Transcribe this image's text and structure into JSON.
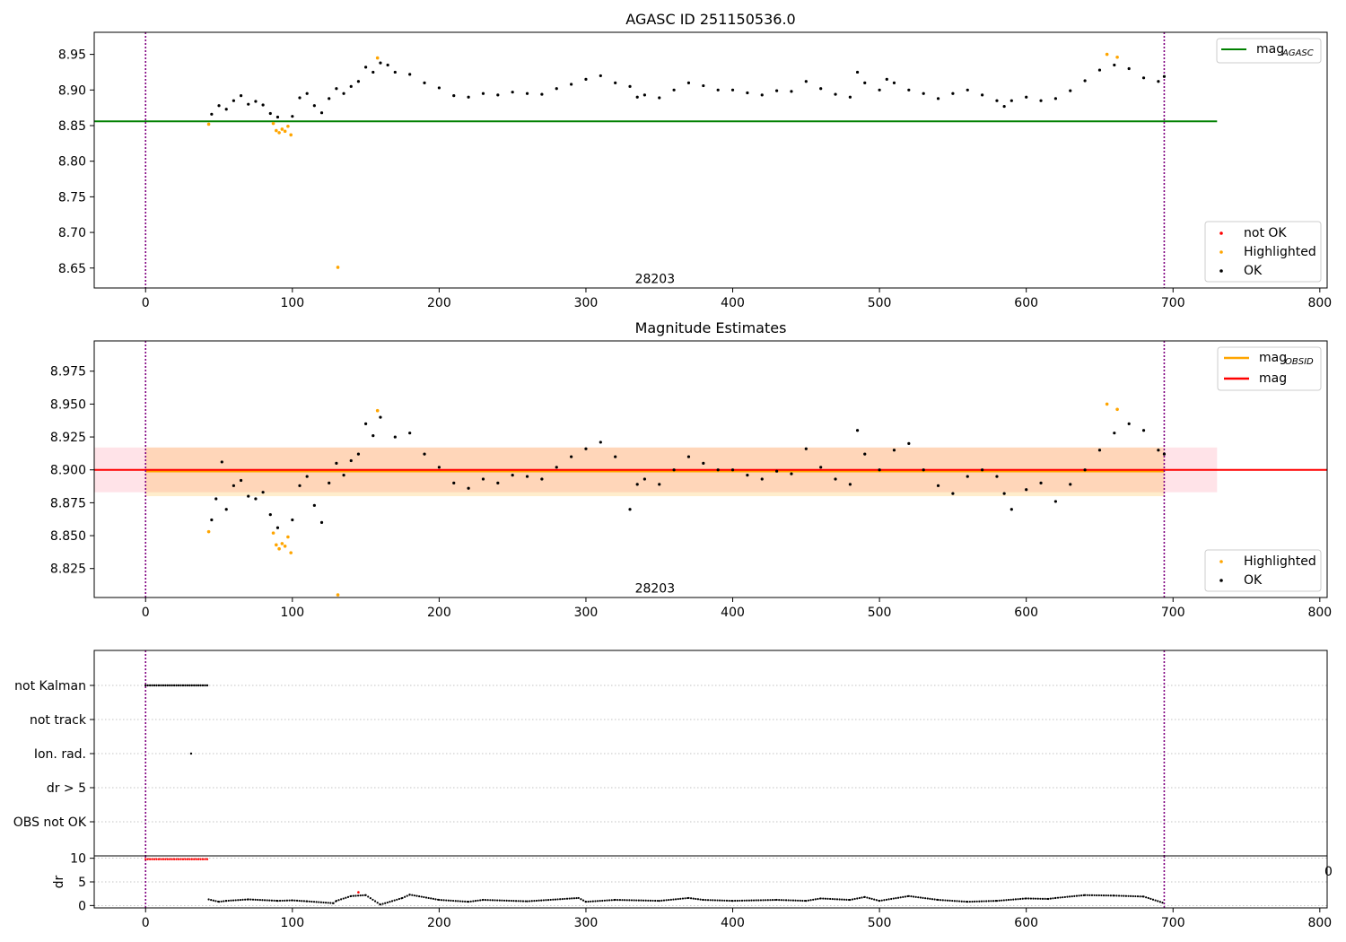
{
  "colors": {
    "ok": "#000000",
    "highlighted": "#ffa500",
    "not_ok": "#ff0000",
    "mag_agasc": "#008000",
    "mag_obsid": "#ffa500",
    "mag": "#ff0000",
    "band_mag": "#ffc0cb",
    "band_obsid": "#ffa500",
    "vline": "#800080",
    "grid": "#b0b0b0"
  },
  "chart_data": [
    {
      "type": "scatter",
      "id": "p1",
      "title": "AGASC ID 251150536.0",
      "xlabel": "",
      "ylabel": "",
      "xlim": [
        -35,
        805
      ],
      "ylim": [
        8.622,
        8.981
      ],
      "xticks": [
        "0",
        "100",
        "200",
        "300",
        "400",
        "500",
        "600",
        "700",
        "800"
      ],
      "yticks": [
        "8.65",
        "8.70",
        "8.75",
        "8.80",
        "8.85",
        "8.90",
        "8.95"
      ],
      "annotation": {
        "text": "28203",
        "x": 347,
        "y": 8.635
      },
      "vlines": [
        0,
        694
      ],
      "hlines": [
        {
          "name": "mag_AGASC",
          "y": 8.856,
          "x_range": [
            -35,
            730
          ]
        }
      ],
      "legend_upper": [
        {
          "main": "mag",
          "sub": "AGASC",
          "kind": "line",
          "color": "#008000"
        }
      ],
      "legend_lower": [
        {
          "label": "not OK",
          "kind": "dot",
          "color": "#ff0000"
        },
        {
          "label": "Highlighted",
          "kind": "dot",
          "color": "#ffa500"
        },
        {
          "label": "OK",
          "kind": "dot",
          "color": "#000000"
        }
      ],
      "series": [
        {
          "name": "OK",
          "color": "#000000",
          "x": [
            45,
            50,
            55,
            60,
            65,
            70,
            75,
            80,
            85,
            90,
            100,
            105,
            110,
            115,
            120,
            125,
            130,
            135,
            140,
            145,
            150,
            155,
            160,
            165,
            170,
            180,
            190,
            200,
            210,
            220,
            230,
            240,
            250,
            260,
            270,
            280,
            290,
            300,
            310,
            320,
            330,
            335,
            340,
            350,
            360,
            370,
            380,
            390,
            400,
            410,
            420,
            430,
            440,
            450,
            460,
            470,
            480,
            485,
            490,
            500,
            505,
            510,
            520,
            530,
            540,
            550,
            560,
            570,
            580,
            585,
            590,
            600,
            610,
            620,
            630,
            640,
            650,
            660,
            670,
            680,
            690,
            694
          ],
          "y": [
            8.866,
            8.878,
            8.873,
            8.885,
            8.892,
            8.88,
            8.884,
            8.879,
            8.867,
            8.862,
            8.863,
            8.889,
            8.895,
            8.878,
            8.868,
            8.888,
            8.902,
            8.895,
            8.905,
            8.912,
            8.932,
            8.925,
            8.938,
            8.935,
            8.925,
            8.922,
            8.91,
            8.903,
            8.892,
            8.89,
            8.895,
            8.893,
            8.897,
            8.895,
            8.894,
            8.902,
            8.908,
            8.915,
            8.92,
            8.91,
            8.905,
            8.89,
            8.893,
            8.889,
            8.9,
            8.91,
            8.906,
            8.9,
            8.9,
            8.896,
            8.893,
            8.899,
            8.898,
            8.912,
            8.902,
            8.894,
            8.89,
            8.925,
            8.91,
            8.9,
            8.915,
            8.91,
            8.9,
            8.895,
            8.888,
            8.895,
            8.9,
            8.893,
            8.885,
            8.877,
            8.885,
            8.89,
            8.885,
            8.888,
            8.899,
            8.913,
            8.928,
            8.935,
            8.93,
            8.917,
            8.912,
            8.919
          ]
        },
        {
          "name": "Highlighted",
          "color": "#ffa500",
          "x": [
            43,
            87,
            89,
            91,
            93,
            95,
            97,
            99,
            131,
            158,
            655,
            662
          ],
          "y": [
            8.852,
            8.853,
            8.843,
            8.84,
            8.845,
            8.842,
            8.849,
            8.837,
            8.651,
            8.945,
            8.95,
            8.946
          ]
        }
      ]
    },
    {
      "type": "scatter",
      "id": "p2",
      "title": "Magnitude Estimates",
      "xlabel": "",
      "ylabel": "",
      "xlim": [
        -35,
        805
      ],
      "ylim": [
        8.803,
        8.998
      ],
      "xticks": [
        "0",
        "100",
        "200",
        "300",
        "400",
        "500",
        "600",
        "700",
        "800"
      ],
      "yticks": [
        "8.825",
        "8.850",
        "8.875",
        "8.900",
        "8.925",
        "8.950",
        "8.975"
      ],
      "annotation": {
        "text": "28203",
        "x": 347,
        "y": 8.81
      },
      "vlines": [
        0,
        694
      ],
      "bands": [
        {
          "name": "mag",
          "y": [
            8.883,
            8.917
          ],
          "x_range": [
            -35,
            730
          ]
        },
        {
          "name": "mag_OBSID",
          "y": [
            8.88,
            8.917
          ],
          "x_range": [
            0,
            694
          ]
        }
      ],
      "hlines": [
        {
          "name": "mag_OBSID",
          "y": 8.899,
          "x_range": [
            0,
            694
          ]
        },
        {
          "name": "mag",
          "y": 8.9,
          "x_range": [
            -35,
            805
          ]
        }
      ],
      "legend_upper": [
        {
          "main": "mag",
          "sub": "OBSID",
          "kind": "line",
          "color": "#ffa500"
        },
        {
          "main": "mag",
          "sub": "",
          "kind": "line",
          "color": "#ff0000"
        }
      ],
      "legend_lower": [
        {
          "label": "Highlighted",
          "kind": "dot",
          "color": "#ffa500"
        },
        {
          "label": "OK",
          "kind": "dot",
          "color": "#000000"
        }
      ],
      "series": [
        {
          "name": "OK",
          "color": "#000000",
          "x": [
            45,
            48,
            52,
            55,
            60,
            65,
            70,
            75,
            80,
            85,
            90,
            100,
            105,
            110,
            115,
            120,
            125,
            130,
            135,
            140,
            145,
            150,
            155,
            160,
            170,
            180,
            190,
            200,
            210,
            220,
            230,
            240,
            250,
            260,
            270,
            280,
            290,
            300,
            310,
            320,
            330,
            335,
            340,
            350,
            360,
            370,
            380,
            390,
            400,
            410,
            420,
            430,
            440,
            450,
            460,
            470,
            480,
            485,
            490,
            500,
            510,
            520,
            530,
            540,
            550,
            560,
            570,
            580,
            585,
            590,
            600,
            610,
            620,
            630,
            640,
            650,
            660,
            670,
            680,
            690,
            694
          ],
          "y": [
            8.862,
            8.878,
            8.906,
            8.87,
            8.888,
            8.892,
            8.88,
            8.878,
            8.883,
            8.866,
            8.856,
            8.862,
            8.888,
            8.895,
            8.873,
            8.86,
            8.89,
            8.905,
            8.896,
            8.907,
            8.912,
            8.935,
            8.926,
            8.94,
            8.925,
            8.928,
            8.912,
            8.902,
            8.89,
            8.886,
            8.893,
            8.89,
            8.896,
            8.895,
            8.893,
            8.902,
            8.91,
            8.916,
            8.921,
            8.91,
            8.87,
            8.889,
            8.893,
            8.889,
            8.9,
            8.91,
            8.905,
            8.9,
            8.9,
            8.896,
            8.893,
            8.899,
            8.897,
            8.916,
            8.902,
            8.893,
            8.889,
            8.93,
            8.912,
            8.9,
            8.915,
            8.92,
            8.9,
            8.888,
            8.882,
            8.895,
            8.9,
            8.895,
            8.882,
            8.87,
            8.885,
            8.89,
            8.876,
            8.889,
            8.9,
            8.915,
            8.928,
            8.935,
            8.93,
            8.915,
            8.912
          ]
        },
        {
          "name": "Highlighted",
          "color": "#ffa500",
          "x": [
            43,
            87,
            89,
            91,
            93,
            95,
            97,
            99,
            131,
            158,
            655,
            662
          ],
          "y": [
            8.853,
            8.852,
            8.843,
            8.84,
            8.844,
            8.842,
            8.849,
            8.837,
            8.805,
            8.945,
            8.95,
            8.946
          ]
        }
      ]
    },
    {
      "type": "scatter",
      "id": "p3",
      "title": "",
      "xlabel": "",
      "ylabel": "",
      "xlim": [
        -35,
        805
      ],
      "categories": [
        "not Kalman",
        "not track",
        "Ion. rad.",
        "dr > 5",
        "OBS not OK"
      ],
      "vlines": [
        0,
        694
      ],
      "flags": [
        {
          "category": "not Kalman",
          "x_from": 0,
          "x_to": 43,
          "x_step": 1.5
        },
        {
          "category": "Ion. rad.",
          "x": [
            31
          ]
        }
      ]
    },
    {
      "type": "scatter",
      "id": "p4",
      "title": "",
      "xlabel": "",
      "ylabel": "dr",
      "xlim": [
        -35,
        805
      ],
      "ylim": [
        -0.5,
        10.5
      ],
      "yticks": [
        "0",
        "5",
        "10"
      ],
      "xticks": [
        "0",
        "100",
        "200",
        "300",
        "400",
        "500",
        "600",
        "700",
        "800"
      ],
      "vlines": [
        0,
        694
      ],
      "hline_red": {
        "y": 9.8,
        "x_range": [
          0,
          43
        ]
      },
      "series": [
        {
          "name": "dr",
          "color": "#000000",
          "x": [
            43,
            50,
            55,
            70,
            90,
            100,
            110,
            128,
            130,
            140,
            150,
            160,
            175,
            180,
            200,
            220,
            230,
            260,
            295,
            300,
            320,
            350,
            370,
            380,
            400,
            430,
            450,
            460,
            480,
            490,
            500,
            520,
            540,
            560,
            580,
            600,
            615,
            620,
            640,
            660,
            680,
            694
          ],
          "y": [
            1.3,
            0.8,
            1.0,
            1.3,
            1.0,
            1.1,
            0.9,
            0.5,
            1.0,
            2.0,
            2.2,
            0.2,
            1.6,
            2.3,
            1.2,
            0.8,
            1.2,
            0.9,
            1.6,
            0.8,
            1.2,
            1.0,
            1.6,
            1.2,
            1.0,
            1.2,
            1.0,
            1.5,
            1.2,
            1.8,
            1.0,
            2.0,
            1.2,
            0.8,
            1.0,
            1.5,
            1.4,
            1.6,
            2.2,
            2.1,
            1.9,
            0.5
          ]
        },
        {
          "name": "red",
          "color": "#ff0000",
          "x": [
            145
          ],
          "y": [
            2.8
          ]
        }
      ],
      "clipped_label": "0"
    }
  ]
}
